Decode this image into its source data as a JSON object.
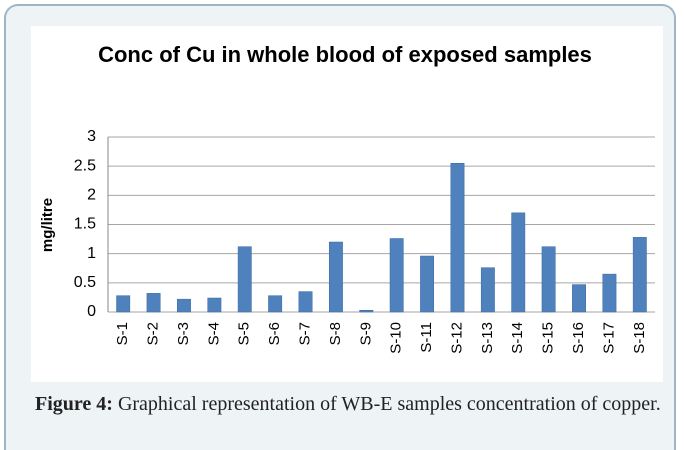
{
  "chart_data": {
    "type": "bar",
    "title": "Conc of Cu in whole blood of exposed samples",
    "ylabel": "mg/litre",
    "categories": [
      "S-1",
      "S-2",
      "S-3",
      "S-4",
      "S-5",
      "S-6",
      "S-7",
      "S-8",
      "S-9",
      "S-10",
      "S-11",
      "S-12",
      "S-13",
      "S-14",
      "S-15",
      "S-16",
      "S-17",
      "S-18"
    ],
    "values": [
      0.28,
      0.32,
      0.22,
      0.24,
      1.12,
      0.28,
      0.35,
      1.2,
      0.03,
      1.26,
      0.96,
      2.55,
      0.76,
      1.7,
      1.12,
      0.47,
      0.65,
      1.28
    ],
    "color": "#4f81bd",
    "ylim": [
      0,
      3
    ],
    "yticks": [
      0,
      0.5,
      1,
      1.5,
      2,
      2.5,
      3
    ],
    "grid": true
  },
  "caption": {
    "label": "Figure 4:",
    "text": "Graphical representation of WB-E samples concentration of copper."
  }
}
